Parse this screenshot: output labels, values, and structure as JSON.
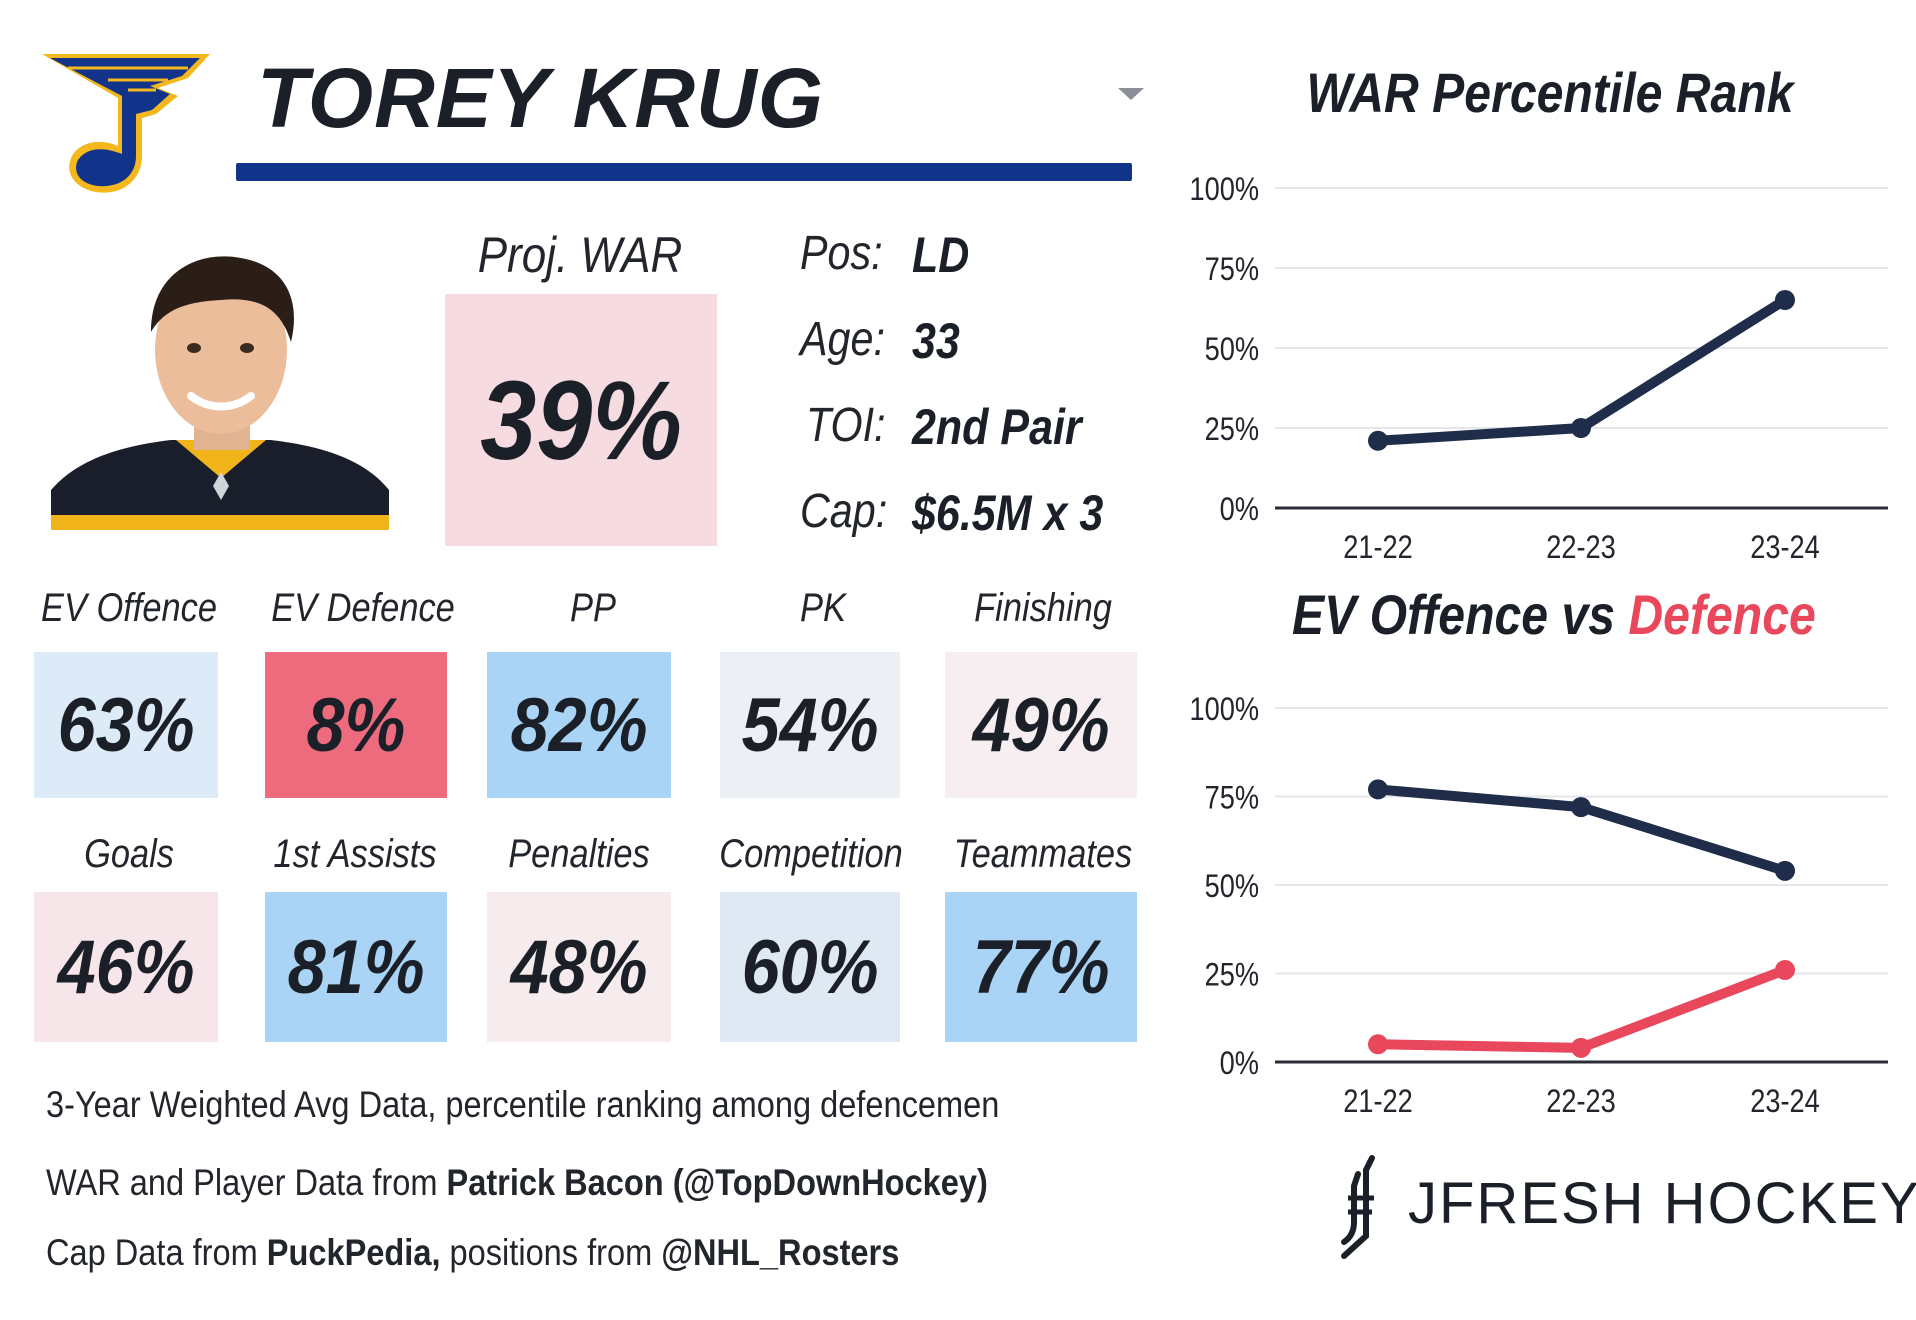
{
  "header": {
    "player_name": "TOREY KRUG",
    "team": "St. Louis Blues"
  },
  "proj_war": {
    "label": "Proj. WAR %",
    "value": "39%"
  },
  "info": [
    {
      "label": "Pos:",
      "value": "LD"
    },
    {
      "label": "Age:",
      "value": "33"
    },
    {
      "label": "TOI:",
      "value": "2nd Pair"
    },
    {
      "label": "Cap:",
      "value": "$6.5M x 3"
    }
  ],
  "metrics_row1": [
    {
      "label": "EV Offence",
      "value": "63%",
      "bg": "#dcebf7"
    },
    {
      "label": "EV Defence",
      "value": "8%",
      "bg": "#ee6b7e"
    },
    {
      "label": "PP",
      "value": "82%",
      "bg": "#a9d4f5"
    },
    {
      "label": "PK",
      "value": "54%",
      "bg": "#eceff4"
    },
    {
      "label": "Finishing",
      "value": "49%",
      "bg": "#f6eef0"
    }
  ],
  "metrics_row2": [
    {
      "label": "Goals",
      "value": "46%",
      "bg": "#f6e6ea"
    },
    {
      "label": "1st Assists",
      "value": "81%",
      "bg": "#a9d4f5"
    },
    {
      "label": "Penalties",
      "value": "48%",
      "bg": "#f6ecee"
    },
    {
      "label": "Competition",
      "value": "60%",
      "bg": "#dfe9f4"
    },
    {
      "label": "Teammates",
      "value": "77%",
      "bg": "#a9d4f5"
    }
  ],
  "notes": {
    "line1": "3-Year Weighted Avg Data, percentile ranking among defencemen",
    "line2_prefix": "WAR and Player Data from ",
    "line2_bold": "Patrick Bacon (@TopDownHockey)",
    "line3_prefix": "Cap Data from ",
    "line3_bold1": "PuckPedia,",
    "line3_mid": " positions from ",
    "line3_bold2": "@NHL_Rosters"
  },
  "brand": {
    "name": "JFRESH HOCKEY"
  },
  "colors": {
    "navy": "#1f2d4a",
    "red": "#e8475c",
    "blue_bar": "#12338a"
  },
  "chart_data": [
    {
      "type": "line",
      "title": "WAR Percentile Rank",
      "categories": [
        "21-22",
        "22-23",
        "23-24"
      ],
      "yticks": [
        "0%",
        "25%",
        "50%",
        "75%",
        "100%"
      ],
      "ylim": [
        0,
        100
      ],
      "series": [
        {
          "name": "WAR",
          "color": "#1f2d4a",
          "values": [
            21,
            25,
            65
          ]
        }
      ]
    },
    {
      "type": "line",
      "title_part1": "EV Offence",
      "title_part2": " vs ",
      "title_part3": "Defence",
      "categories": [
        "21-22",
        "22-23",
        "23-24"
      ],
      "yticks": [
        "0%",
        "25%",
        "50%",
        "75%",
        "100%"
      ],
      "ylim": [
        0,
        100
      ],
      "series": [
        {
          "name": "EV Offence",
          "color": "#1f2d4a",
          "values": [
            77,
            72,
            54
          ]
        },
        {
          "name": "EV Defence",
          "color": "#e8475c",
          "values": [
            5,
            4,
            26
          ]
        }
      ]
    }
  ]
}
